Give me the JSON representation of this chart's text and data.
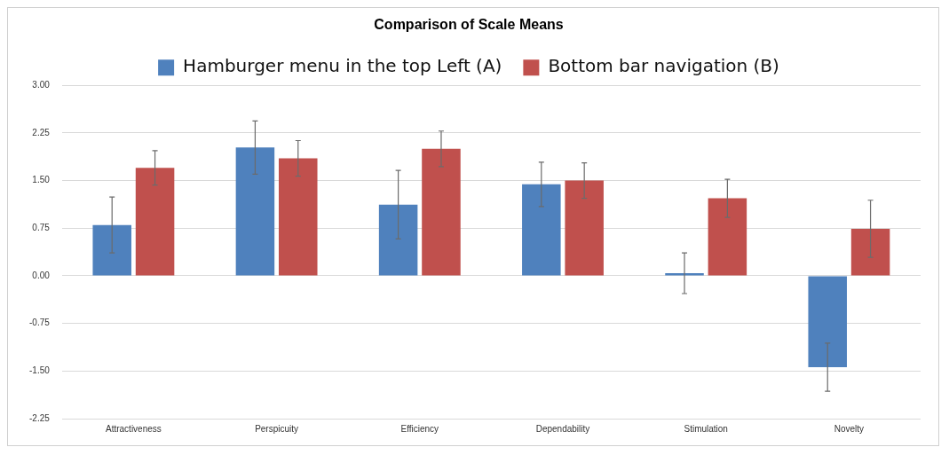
{
  "chart_data": {
    "type": "bar",
    "title": "Comparison of Scale Means",
    "categories": [
      "Attractiveness",
      "Perspicuity",
      "Efficiency",
      "Dependability",
      "Stimulation",
      "Novelty"
    ],
    "series": [
      {
        "name": "Hamburger menu in the top Left (A)",
        "color": "#4f81bd",
        "values": [
          0.8,
          2.02,
          1.12,
          1.44,
          0.04,
          -1.44
        ],
        "errors": [
          0.44,
          0.42,
          0.54,
          0.35,
          0.32,
          0.38
        ]
      },
      {
        "name": "Bottom bar navigation (B)",
        "color": "#c0504d",
        "values": [
          1.7,
          1.85,
          2.0,
          1.5,
          1.22,
          0.74
        ],
        "errors": [
          0.27,
          0.28,
          0.28,
          0.28,
          0.3,
          0.45
        ]
      }
    ],
    "ylim": [
      -2.25,
      3
    ],
    "yticks": [
      {
        "value": -2.25,
        "label": "-2.25"
      },
      {
        "value": -1.5,
        "label": "-1.50"
      },
      {
        "value": -0.75,
        "label": "-0.75"
      },
      {
        "value": 0,
        "label": "0.00"
      },
      {
        "value": 0.75,
        "label": "0.75"
      },
      {
        "value": 1.5,
        "label": "1.50"
      },
      {
        "value": 2.25,
        "label": "2.25"
      },
      {
        "value": 3,
        "label": "3.00"
      }
    ],
    "grid": "y",
    "legend": "top"
  }
}
